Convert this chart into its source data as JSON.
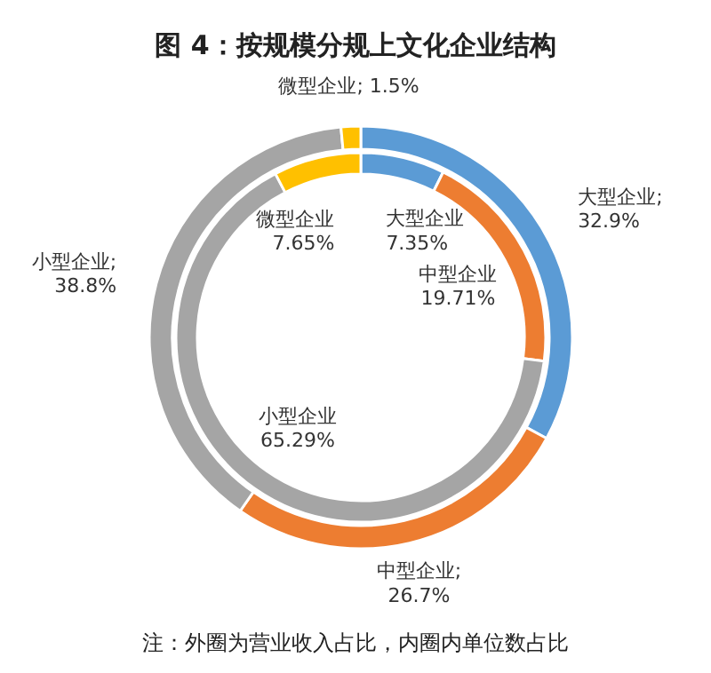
{
  "chart_data": [
    {
      "type": "donut",
      "title": "图 4：按规模分规上文化企业结构",
      "annotations": [
        "注：外圈为营业收入占比，内圈内单位数占比"
      ],
      "categories": [
        "大型企业",
        "中型企业",
        "小型企业",
        "微型企业"
      ],
      "colors": [
        "#5b9bd5",
        "#ed7d31",
        "#a5a5a5",
        "#ffc000"
      ],
      "values": [
        32.9,
        26.7,
        38.8,
        1.5
      ],
      "value_labels": [
        ";\n32.9%",
        ";\n26.7%",
        ";\n38.8%",
        "; 1.5%"
      ]
    },
    {
      "type": "donut",
      "categories": [
        "大型企业",
        "中型企业",
        "小型企业",
        "微型企业"
      ],
      "colors": [
        "#5b9bd5",
        "#ed7d31",
        "#a5a5a5",
        "#ffc000"
      ],
      "values": [
        7.35,
        19.71,
        65.29,
        7.65
      ],
      "value_labels": [
        "\n7.35%",
        "\n19.71%",
        "\n65.29%",
        "\n7.65%"
      ]
    }
  ]
}
